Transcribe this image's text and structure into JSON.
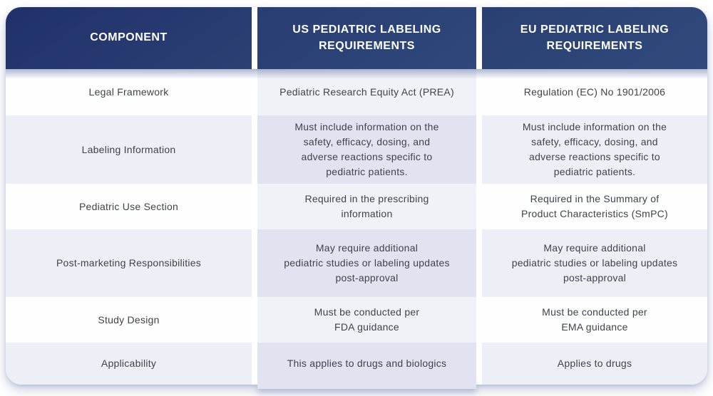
{
  "title": "US vs EU Pediatric Labeling Requirements comparison table",
  "colors": {
    "header_navy_dark": "#26386c",
    "header_navy_light": "#2f477b",
    "row_white": "#fefeff",
    "row_alt": "#edeff7",
    "mid_row_white": "#f1f2f8",
    "mid_row_alt": "#e1e4f0",
    "body_text": "#3f434b",
    "header_text": "#ffffff"
  },
  "chart_data": {
    "type": "table",
    "columns": [
      "COMPONENT",
      "US PEDIATRIC LABELING REQUIREMENTS",
      "EU PEDIATRIC LABELING REQUIREMENTS"
    ],
    "rows": [
      {
        "component": "Legal Framework",
        "us": "Pediatric Research Equity Act (PREA)",
        "eu": "Regulation (EC) No 1901/2006"
      },
      {
        "component": "Labeling Information",
        "us": "Must include information on the\nsafety, efficacy, dosing, and\nadverse reactions specific to\npediatric patients.",
        "eu": "Must include information on the\nsafety, efficacy, dosing, and\nadverse reactions specific to\npediatric patients."
      },
      {
        "component": "Pediatric Use Section",
        "us": "Required in the prescribing\ninformation",
        "eu": "Required in the Summary of\nProduct Characteristics (SmPC)"
      },
      {
        "component": "Post-marketing Responsibilities",
        "us": "May require additional\npediatric studies or labeling updates\npost-approval",
        "eu": "May require additional\npediatric studies or labeling updates\npost-approval"
      },
      {
        "component": "Study Design",
        "us": "Must be conducted per\nFDA guidance",
        "eu": "Must be conducted per\nEMA guidance"
      },
      {
        "component": "Applicability",
        "us": "This applies to drugs and biologics",
        "eu": "Applies to drugs"
      }
    ]
  }
}
